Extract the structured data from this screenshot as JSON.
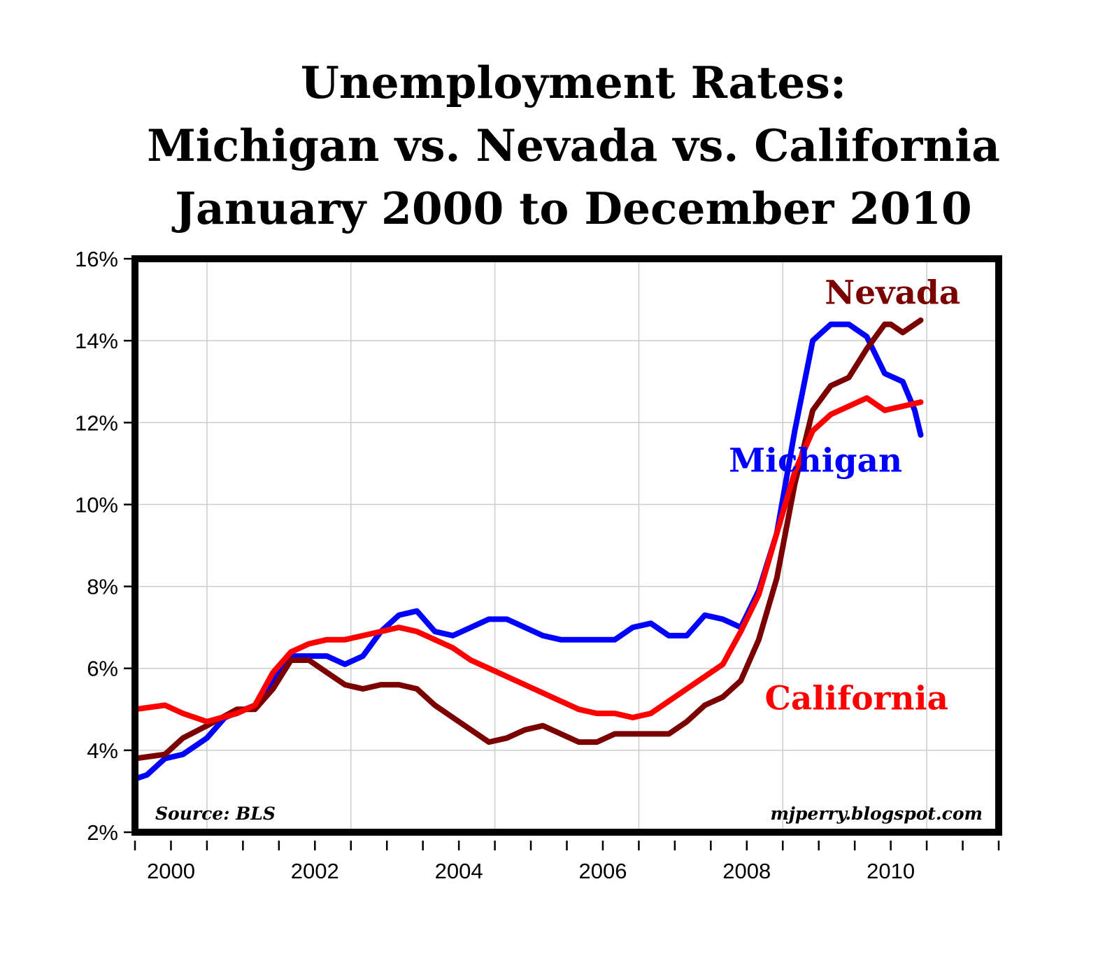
{
  "chart_data": {
    "type": "line",
    "title_lines": [
      "Unemployment Rates:",
      "Michigan vs. Nevada vs. California",
      "January 2000 to December 2010"
    ],
    "xlabel": "",
    "ylabel": "",
    "x_ticks": [
      "2000",
      "2002",
      "2004",
      "2006",
      "2008",
      "2010"
    ],
    "y_ticks": [
      "2%",
      "4%",
      "6%",
      "8%",
      "10%",
      "12%",
      "14%",
      "16%"
    ],
    "ylim": [
      2,
      16
    ],
    "xlim": [
      "2000-01",
      "2012-01"
    ],
    "grid": true,
    "source_note": "Source: BLS",
    "watermark": "mjperry.blogspot.com",
    "series": [
      {
        "name": "Michigan",
        "color": "#0000ff",
        "points": [
          [
            "2000-01",
            3.3
          ],
          [
            "2000-03",
            3.4
          ],
          [
            "2000-06",
            3.8
          ],
          [
            "2000-09",
            3.9
          ],
          [
            "2001-01",
            4.3
          ],
          [
            "2001-04",
            4.8
          ],
          [
            "2001-09",
            5.1
          ],
          [
            "2001-12",
            5.7
          ],
          [
            "2002-03",
            6.3
          ],
          [
            "2002-06",
            6.3
          ],
          [
            "2002-09",
            6.3
          ],
          [
            "2002-12",
            6.1
          ],
          [
            "2003-03",
            6.3
          ],
          [
            "2003-06",
            6.9
          ],
          [
            "2003-09",
            7.3
          ],
          [
            "2003-12",
            7.4
          ],
          [
            "2004-03",
            6.9
          ],
          [
            "2004-06",
            6.8
          ],
          [
            "2004-09",
            7.0
          ],
          [
            "2004-12",
            7.2
          ],
          [
            "2005-03",
            7.2
          ],
          [
            "2005-06",
            7.0
          ],
          [
            "2005-09",
            6.8
          ],
          [
            "2005-12",
            6.7
          ],
          [
            "2006-06",
            6.7
          ],
          [
            "2006-09",
            6.7
          ],
          [
            "2006-12",
            7.0
          ],
          [
            "2007-03",
            7.1
          ],
          [
            "2007-06",
            6.8
          ],
          [
            "2007-09",
            6.8
          ],
          [
            "2007-12",
            7.3
          ],
          [
            "2008-03",
            7.2
          ],
          [
            "2008-06",
            7.0
          ],
          [
            "2008-09",
            7.9
          ],
          [
            "2008-12",
            9.3
          ],
          [
            "2009-03",
            11.8
          ],
          [
            "2009-06",
            14.0
          ],
          [
            "2009-09",
            14.4
          ],
          [
            "2009-12",
            14.4
          ],
          [
            "2010-03",
            14.1
          ],
          [
            "2010-06",
            13.2
          ],
          [
            "2010-09",
            13.0
          ],
          [
            "2010-11",
            12.3
          ],
          [
            "2010-12",
            11.7
          ]
        ]
      },
      {
        "name": "Nevada",
        "color": "#7b0000",
        "points": [
          [
            "2000-01",
            3.8
          ],
          [
            "2000-06",
            3.9
          ],
          [
            "2000-09",
            4.3
          ],
          [
            "2001-01",
            4.6
          ],
          [
            "2001-06",
            5.0
          ],
          [
            "2001-09",
            5.0
          ],
          [
            "2001-12",
            5.5
          ],
          [
            "2002-03",
            6.2
          ],
          [
            "2002-06",
            6.2
          ],
          [
            "2002-09",
            5.9
          ],
          [
            "2002-12",
            5.6
          ],
          [
            "2003-03",
            5.5
          ],
          [
            "2003-06",
            5.6
          ],
          [
            "2003-09",
            5.6
          ],
          [
            "2003-12",
            5.5
          ],
          [
            "2004-03",
            5.1
          ],
          [
            "2004-06",
            4.8
          ],
          [
            "2004-09",
            4.5
          ],
          [
            "2004-12",
            4.2
          ],
          [
            "2005-03",
            4.3
          ],
          [
            "2005-06",
            4.5
          ],
          [
            "2005-09",
            4.6
          ],
          [
            "2005-12",
            4.4
          ],
          [
            "2006-03",
            4.2
          ],
          [
            "2006-06",
            4.2
          ],
          [
            "2006-09",
            4.4
          ],
          [
            "2006-12",
            4.4
          ],
          [
            "2007-03",
            4.4
          ],
          [
            "2007-06",
            4.4
          ],
          [
            "2007-09",
            4.7
          ],
          [
            "2007-12",
            5.1
          ],
          [
            "2008-03",
            5.3
          ],
          [
            "2008-06",
            5.7
          ],
          [
            "2008-09",
            6.7
          ],
          [
            "2008-12",
            8.2
          ],
          [
            "2009-03",
            10.5
          ],
          [
            "2009-06",
            12.3
          ],
          [
            "2009-09",
            12.9
          ],
          [
            "2009-12",
            13.1
          ],
          [
            "2010-03",
            13.8
          ],
          [
            "2010-06",
            14.4
          ],
          [
            "2010-07",
            14.4
          ],
          [
            "2010-09",
            14.2
          ],
          [
            "2010-12",
            14.5
          ]
        ]
      },
      {
        "name": "California",
        "color": "#ff0000",
        "points": [
          [
            "2000-01",
            5.0
          ],
          [
            "2000-06",
            5.1
          ],
          [
            "2000-09",
            4.9
          ],
          [
            "2001-01",
            4.7
          ],
          [
            "2001-06",
            4.9
          ],
          [
            "2001-09",
            5.1
          ],
          [
            "2001-12",
            5.9
          ],
          [
            "2002-03",
            6.4
          ],
          [
            "2002-06",
            6.6
          ],
          [
            "2002-09",
            6.7
          ],
          [
            "2002-12",
            6.7
          ],
          [
            "2003-03",
            6.8
          ],
          [
            "2003-06",
            6.9
          ],
          [
            "2003-09",
            7.0
          ],
          [
            "2003-12",
            6.9
          ],
          [
            "2004-03",
            6.7
          ],
          [
            "2004-06",
            6.5
          ],
          [
            "2004-09",
            6.2
          ],
          [
            "2004-12",
            6.0
          ],
          [
            "2005-03",
            5.8
          ],
          [
            "2005-06",
            5.6
          ],
          [
            "2005-09",
            5.4
          ],
          [
            "2005-12",
            5.2
          ],
          [
            "2006-03",
            5.0
          ],
          [
            "2006-06",
            4.9
          ],
          [
            "2006-09",
            4.9
          ],
          [
            "2006-12",
            4.8
          ],
          [
            "2007-03",
            4.9
          ],
          [
            "2007-06",
            5.2
          ],
          [
            "2007-09",
            5.5
          ],
          [
            "2007-12",
            5.8
          ],
          [
            "2008-03",
            6.1
          ],
          [
            "2008-06",
            6.9
          ],
          [
            "2008-09",
            7.8
          ],
          [
            "2008-12",
            9.3
          ],
          [
            "2009-03",
            10.8
          ],
          [
            "2009-06",
            11.8
          ],
          [
            "2009-09",
            12.2
          ],
          [
            "2009-12",
            12.4
          ],
          [
            "2010-03",
            12.6
          ],
          [
            "2010-06",
            12.3
          ],
          [
            "2010-09",
            12.4
          ],
          [
            "2010-12",
            12.5
          ]
        ]
      }
    ]
  }
}
